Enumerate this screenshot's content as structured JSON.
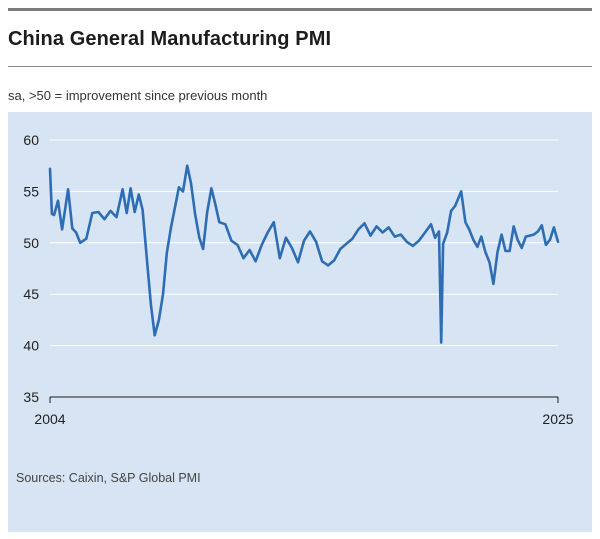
{
  "title": "China General Manufacturing PMI",
  "subtitle": "sa, >50 = improvement since previous month",
  "source": "Sources: Caixin, S&P Global PMI",
  "colors": {
    "line": "#2e6db4",
    "panel": "#d6e4f3",
    "grid": "#ffffff",
    "axis": "#1a1a1a"
  },
  "chart_data": {
    "type": "line",
    "title": "China General Manufacturing PMI",
    "subtitle": "sa, >50 = improvement since previous month",
    "xlabel": "",
    "ylabel": "",
    "ylim": [
      35,
      60
    ],
    "yticks": [
      35,
      40,
      45,
      50,
      55,
      60
    ],
    "xlim": [
      2004.0,
      2025.0
    ],
    "xtick_labels": [
      "2004",
      "2025"
    ],
    "grid": true,
    "legend": "none",
    "series": [
      {
        "x": [
          2004.0,
          2004.08,
          2004.17,
          2004.33,
          2004.5,
          2004.75,
          2004.92,
          2005.08,
          2005.25,
          2005.5,
          2005.75,
          2006.0,
          2006.25,
          2006.5,
          2006.75,
          2007.0,
          2007.17,
          2007.33,
          2007.5,
          2007.67,
          2007.83,
          2008.0,
          2008.17,
          2008.33,
          2008.5,
          2008.67,
          2008.83,
          2009.0,
          2009.17,
          2009.33,
          2009.5,
          2009.67,
          2009.83,
          2010.0,
          2010.17,
          2010.33,
          2010.5,
          2010.67,
          2010.83,
          2011.0,
          2011.25,
          2011.5,
          2011.75,
          2012.0,
          2012.25,
          2012.5,
          2012.75,
          2013.0,
          2013.25,
          2013.5,
          2013.75,
          2014.0,
          2014.25,
          2014.5,
          2014.75,
          2015.0,
          2015.25,
          2015.5,
          2015.75,
          2016.0,
          2016.25,
          2016.5,
          2016.75,
          2017.0,
          2017.25,
          2017.5,
          2017.75,
          2018.0,
          2018.25,
          2018.5,
          2018.75,
          2019.0,
          2019.25,
          2019.5,
          2019.75,
          2019.92,
          2020.08,
          2020.17,
          2020.25,
          2020.42,
          2020.58,
          2020.75,
          2021.0,
          2021.17,
          2021.33,
          2021.5,
          2021.67,
          2021.83,
          2022.0,
          2022.17,
          2022.33,
          2022.5,
          2022.67,
          2022.83,
          2023.0,
          2023.17,
          2023.33,
          2023.5,
          2023.67,
          2023.83,
          2024.0,
          2024.17,
          2024.33,
          2024.5,
          2024.67,
          2024.83,
          2025.0
        ],
        "values": [
          57.2,
          52.8,
          52.7,
          54.1,
          51.3,
          55.2,
          51.4,
          51.0,
          50.0,
          50.4,
          52.9,
          53.0,
          52.3,
          53.1,
          52.5,
          55.2,
          52.9,
          55.3,
          53.0,
          54.7,
          53.2,
          48.5,
          44.0,
          41.0,
          42.5,
          45.0,
          49.0,
          51.5,
          53.5,
          55.4,
          55.0,
          57.5,
          55.8,
          52.8,
          50.5,
          49.4,
          53.0,
          55.3,
          53.8,
          52.0,
          51.8,
          50.2,
          49.8,
          48.5,
          49.3,
          48.2,
          49.8,
          51.0,
          52.0,
          48.5,
          50.5,
          49.5,
          48.1,
          50.2,
          51.1,
          50.1,
          48.2,
          47.8,
          48.3,
          49.4,
          49.9,
          50.4,
          51.3,
          51.9,
          50.7,
          51.6,
          51.0,
          51.5,
          50.6,
          50.8,
          50.1,
          49.7,
          50.2,
          51.0,
          51.8,
          50.5,
          51.1,
          40.3,
          49.9,
          51.0,
          53.1,
          53.6,
          55.0,
          52.0,
          51.3,
          50.3,
          49.6,
          50.6,
          49.1,
          48.1,
          46.0,
          49.1,
          50.8,
          49.2,
          49.2,
          51.6,
          50.3,
          49.5,
          50.6,
          50.7,
          50.8,
          51.1,
          51.7,
          49.8,
          50.3,
          51.5,
          50.1
        ]
      }
    ]
  }
}
